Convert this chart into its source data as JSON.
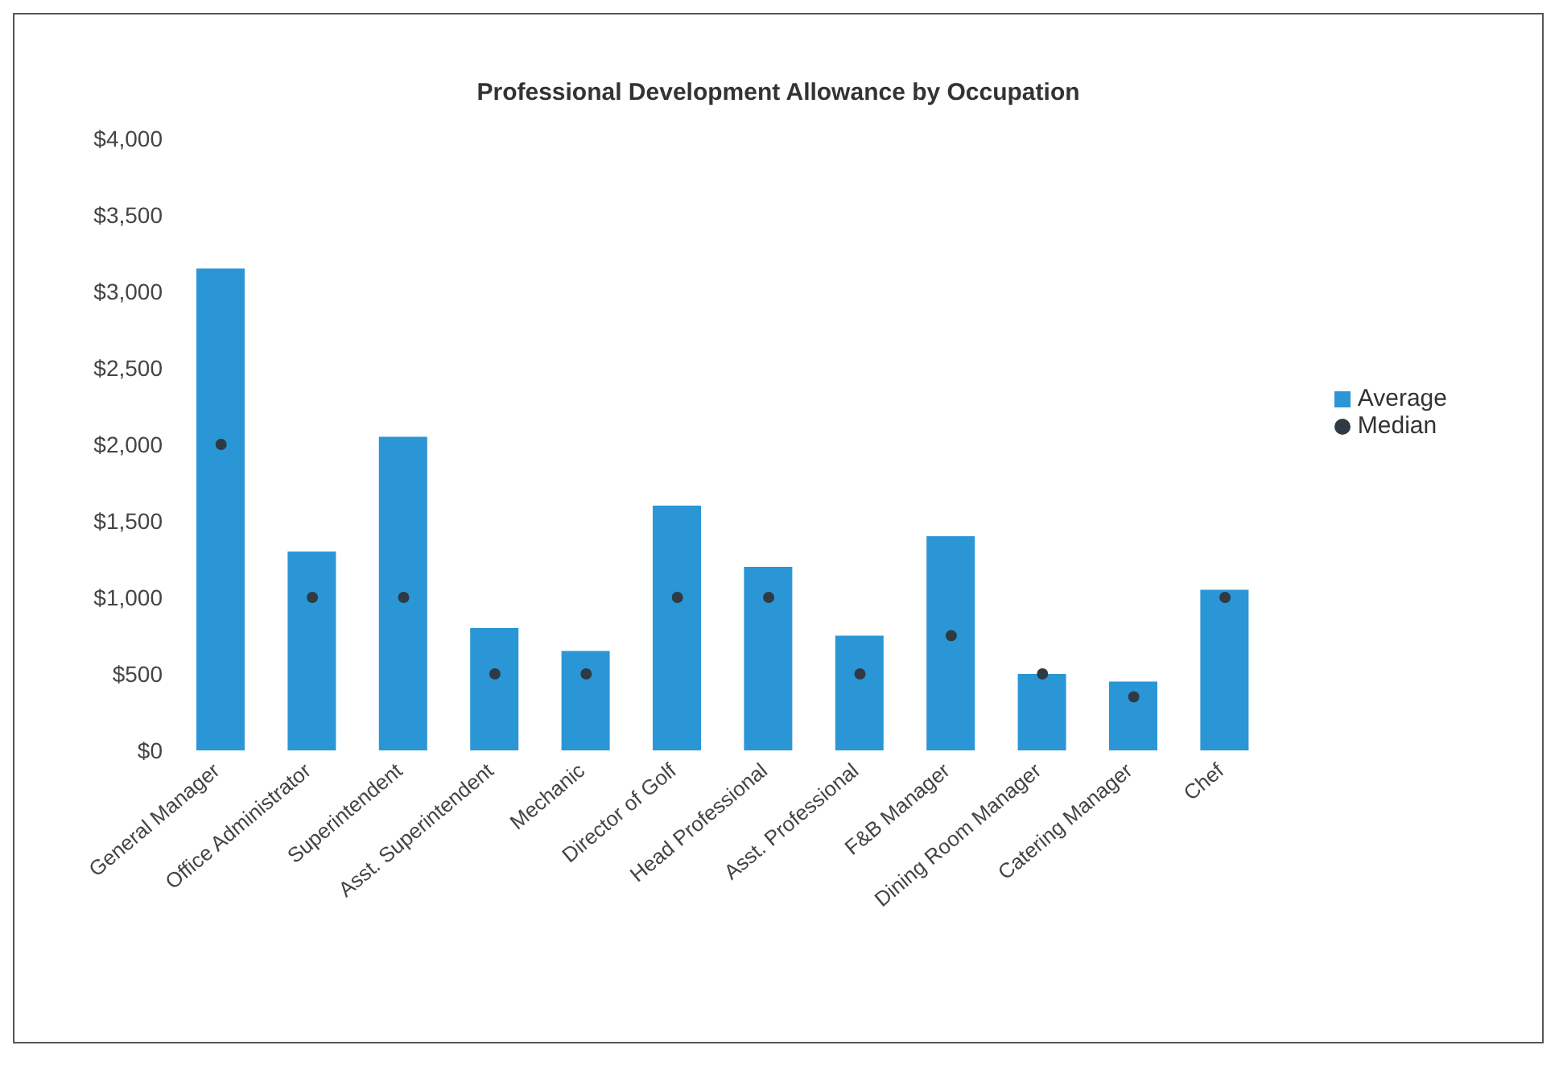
{
  "chart_data": {
    "type": "bar",
    "title": "Professional Development Allowance by Occupation",
    "categories": [
      "General Manager",
      "Office Administrator",
      "Superintendent",
      "Asst. Superintendent",
      "Mechanic",
      "Director of Golf",
      "Head Professional",
      "Asst. Professional",
      "F&B Manager",
      "Dining Room Manager",
      "Catering Manager",
      "Chef"
    ],
    "series": [
      {
        "name": "Average",
        "type": "bar",
        "color": "#2b96d6",
        "values": [
          3150,
          1300,
          2050,
          800,
          650,
          1600,
          1200,
          750,
          1400,
          500,
          450,
          1050
        ]
      },
      {
        "name": "Median",
        "type": "scatter",
        "color": "#2f3a44",
        "values": [
          2000,
          1000,
          1000,
          500,
          500,
          1000,
          1000,
          500,
          750,
          500,
          350,
          1000
        ]
      }
    ],
    "ylim": [
      0,
      4000
    ],
    "yticks": [
      {
        "value": 0,
        "label": "$0"
      },
      {
        "value": 500,
        "label": "$500"
      },
      {
        "value": 1000,
        "label": "$1,000"
      },
      {
        "value": 1500,
        "label": "$1,500"
      },
      {
        "value": 2000,
        "label": "$2,000"
      },
      {
        "value": 2500,
        "label": "$2,500"
      },
      {
        "value": 3000,
        "label": "$3,000"
      },
      {
        "value": 3500,
        "label": "$3,500"
      },
      {
        "value": 4000,
        "label": "$4,000"
      }
    ],
    "legend": "right",
    "grid": false,
    "marker": "circle"
  }
}
